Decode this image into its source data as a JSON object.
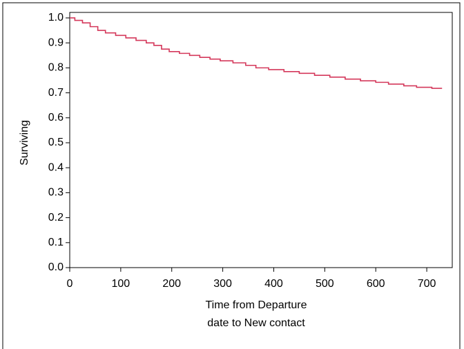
{
  "chart_data": {
    "type": "step",
    "x_label": [
      "Time from Departure",
      "date to New contact"
    ],
    "y_label": "Surviving",
    "x": [
      0,
      10,
      25,
      40,
      55,
      70,
      90,
      110,
      130,
      150,
      165,
      180,
      195,
      215,
      235,
      255,
      275,
      295,
      320,
      345,
      365,
      390,
      420,
      450,
      480,
      510,
      540,
      570,
      600,
      625,
      655,
      680,
      710,
      730
    ],
    "series": [
      {
        "name": "Surviving",
        "color": "#d4375a",
        "values": [
          1.0,
          0.99,
          0.98,
          0.965,
          0.95,
          0.94,
          0.93,
          0.92,
          0.91,
          0.9,
          0.89,
          0.875,
          0.865,
          0.858,
          0.85,
          0.842,
          0.835,
          0.828,
          0.82,
          0.81,
          0.8,
          0.793,
          0.785,
          0.778,
          0.77,
          0.763,
          0.755,
          0.748,
          0.742,
          0.735,
          0.728,
          0.722,
          0.718,
          0.718
        ]
      }
    ],
    "xlim": [
      0,
      750
    ],
    "ylim": [
      0,
      1.022
    ],
    "xticks": [
      0,
      100,
      200,
      300,
      400,
      500,
      600,
      700
    ],
    "yticks": [
      {
        "value": 0,
        "label": "0.0"
      },
      0.1,
      0.2,
      0.3,
      0.4,
      0.5,
      0.6,
      0.7,
      0.8,
      0.9,
      {
        "value": 1,
        "label": "1.0"
      }
    ]
  }
}
